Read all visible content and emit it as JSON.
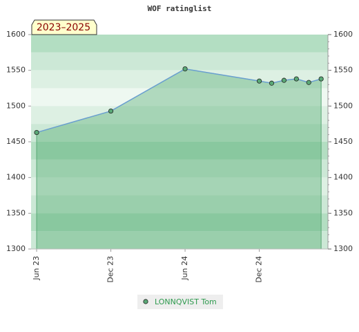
{
  "chart_data": {
    "type": "line",
    "title": "WOF ratinglist",
    "annotation": "2023–2025",
    "x": [
      0,
      6,
      12,
      18,
      19,
      20,
      21,
      22,
      23
    ],
    "xlim": [
      -0.45,
      23.55
    ],
    "xticks": [
      {
        "value": 0,
        "label": "Jun 23"
      },
      {
        "value": 6,
        "label": "Dec 23"
      },
      {
        "value": 12,
        "label": "Jun 24"
      },
      {
        "value": 18,
        "label": "Dec 24"
      }
    ],
    "series": [
      {
        "name": "LONNQVIST Tom",
        "color": "#5aa876",
        "values": [
          1463,
          1493,
          1552,
          1535,
          1532,
          1536,
          1538,
          1533,
          1538
        ]
      }
    ],
    "ylim": [
      1300,
      1600
    ],
    "yticks": [
      1300,
      1350,
      1400,
      1450,
      1500,
      1550,
      1600
    ],
    "y2lim": [
      1300,
      1600
    ],
    "y2ticks": [
      1300,
      1350,
      1400,
      1450,
      1500,
      1550,
      1600
    ]
  }
}
